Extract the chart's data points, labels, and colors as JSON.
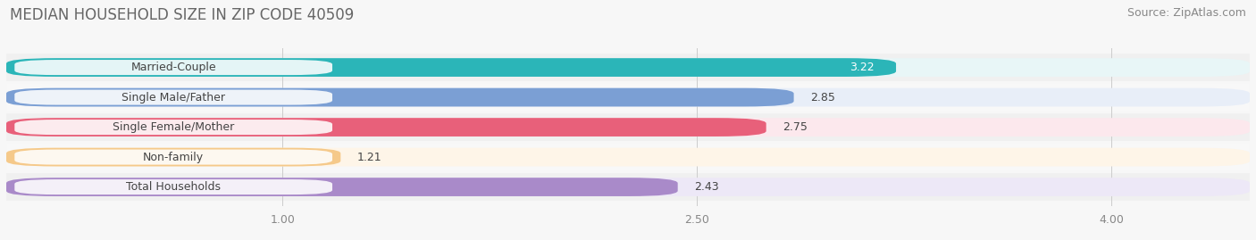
{
  "title": "MEDIAN HOUSEHOLD SIZE IN ZIP CODE 40509",
  "source": "Source: ZipAtlas.com",
  "categories": [
    "Married-Couple",
    "Single Male/Father",
    "Single Female/Mother",
    "Non-family",
    "Total Households"
  ],
  "values": [
    3.22,
    2.85,
    2.75,
    1.21,
    2.43
  ],
  "bar_colors": [
    "#2bb5b8",
    "#7b9fd4",
    "#e8607a",
    "#f5c98a",
    "#a98ac9"
  ],
  "bar_bg_colors": [
    "#e8f6f7",
    "#e8eef8",
    "#fce8ed",
    "#fef5e8",
    "#ede8f7"
  ],
  "row_bg_colors": [
    "#f0f0f0",
    "#f8f8f8",
    "#f0f0f0",
    "#f8f8f8",
    "#f0f0f0"
  ],
  "value_colors": [
    "white",
    "black",
    "black",
    "black",
    "black"
  ],
  "xlim": [
    0.0,
    4.5
  ],
  "xmin": 0.0,
  "xticks": [
    1.0,
    2.5,
    4.0
  ],
  "xtick_labels": [
    "1.00",
    "2.50",
    "4.00"
  ],
  "title_fontsize": 12,
  "source_fontsize": 9,
  "label_fontsize": 9,
  "value_fontsize": 9,
  "background_color": "#f7f7f7"
}
